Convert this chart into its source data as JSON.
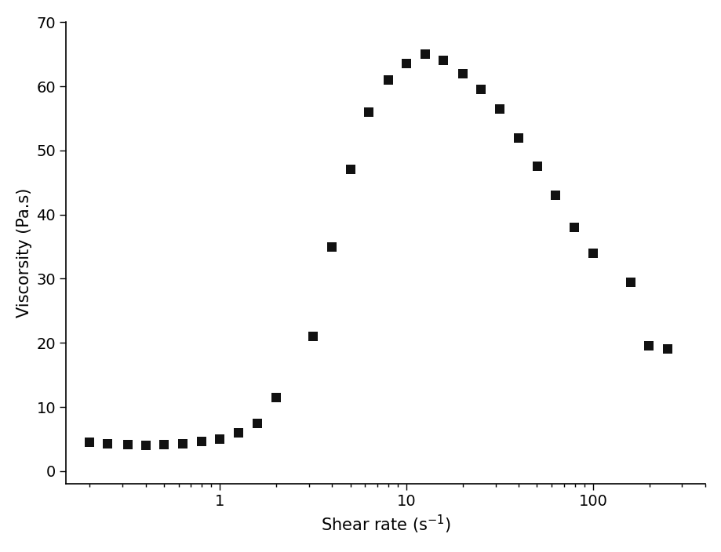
{
  "x": [
    0.2,
    0.25,
    0.32,
    0.4,
    0.5,
    0.63,
    0.8,
    1.0,
    1.26,
    1.58,
    2.0,
    3.16,
    4.0,
    5.0,
    6.3,
    8.0,
    10.0,
    12.6,
    15.8,
    20.0,
    25.1,
    31.6,
    39.8,
    50.1,
    63.1,
    79.4,
    100.0,
    158.5,
    199.5,
    251.0
  ],
  "y": [
    4.5,
    4.3,
    4.1,
    4.0,
    4.1,
    4.3,
    4.6,
    5.0,
    6.0,
    7.5,
    11.5,
    21.0,
    35.0,
    47.0,
    56.0,
    61.0,
    63.5,
    65.0,
    64.0,
    62.0,
    59.5,
    56.5,
    52.0,
    47.5,
    43.0,
    38.0,
    34.0,
    29.5,
    19.5,
    19.0
  ],
  "marker": "s",
  "marker_color": "#111111",
  "marker_size": 9,
  "xlabel": "Shear rate (s$^{-1}$)",
  "ylabel": "Viscorsity (Pa.s)",
  "xlim_log": [
    0.15,
    400
  ],
  "ylim": [
    -2,
    70
  ],
  "yticks": [
    0,
    10,
    20,
    30,
    40,
    50,
    60,
    70
  ],
  "bg_color": "#ffffff",
  "label_fontsize": 15,
  "tick_fontsize": 14
}
